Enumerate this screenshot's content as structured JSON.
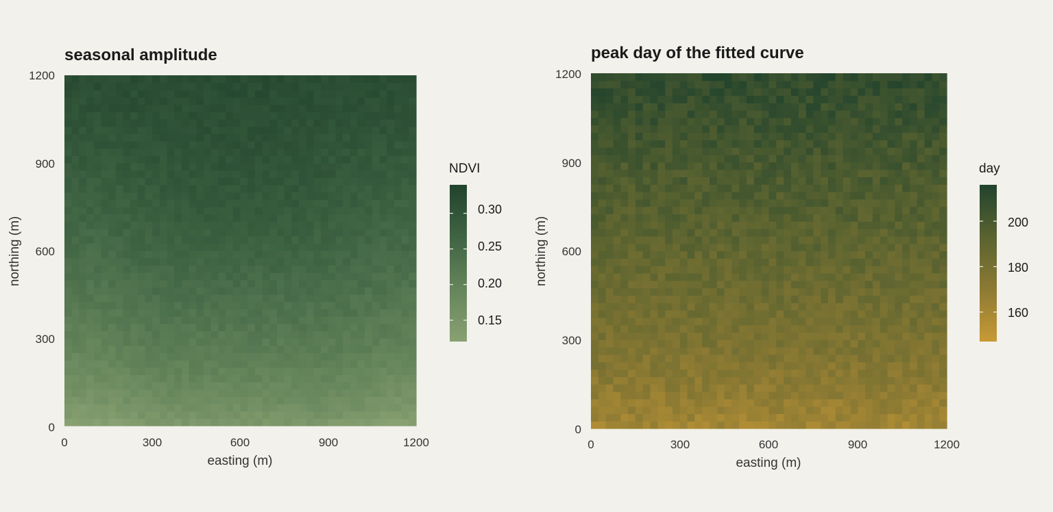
{
  "chart_data": [
    {
      "type": "heatmap",
      "title": "seasonal amplitude",
      "xlabel": "easting (m)",
      "ylabel": "northing (m)",
      "xlim": [
        0,
        1200
      ],
      "ylim": [
        0,
        1200
      ],
      "xticks": [
        "0",
        "300",
        "600",
        "900",
        "1200"
      ],
      "yticks": [
        "0",
        "300",
        "600",
        "900",
        "1200"
      ],
      "grid_cells": [
        48,
        48
      ],
      "value_field": "NDVI amplitude",
      "legend": {
        "title": "NDVI",
        "placement": "right",
        "range": [
          0.12,
          0.34
        ],
        "ticks": [
          "0.15",
          "0.20",
          "0.25",
          "0.30"
        ],
        "colors": [
          "#89a172",
          "#65855b",
          "#3f6443",
          "#21432d"
        ]
      },
      "pattern": {
        "description_values": "low (~0.12-0.17) along the south edge, highest (~0.33) toward the north-central area",
        "south_value": 0.13,
        "north_value": 0.32,
        "center_peak_value": 0.335
      }
    },
    {
      "type": "heatmap",
      "title": "peak day of the fitted curve",
      "xlabel": "easting (m)",
      "ylabel": "northing (m)",
      "xlim": [
        0,
        1200
      ],
      "ylim": [
        0,
        1200
      ],
      "xticks": [
        "0",
        "300",
        "600",
        "900",
        "1200"
      ],
      "yticks": [
        "0",
        "300",
        "600",
        "900",
        "1200"
      ],
      "grid_cells": [
        48,
        48
      ],
      "value_field": "day of year",
      "legend": {
        "title": "day",
        "placement": "right",
        "range": [
          147,
          216
        ],
        "ticks": [
          "160",
          "180",
          "200"
        ],
        "colors": [
          "#c89a36",
          "#8c7a33",
          "#5a6330",
          "#21432d"
        ]
      },
      "pattern": {
        "south_value": 160,
        "north_value": 210
      }
    }
  ]
}
